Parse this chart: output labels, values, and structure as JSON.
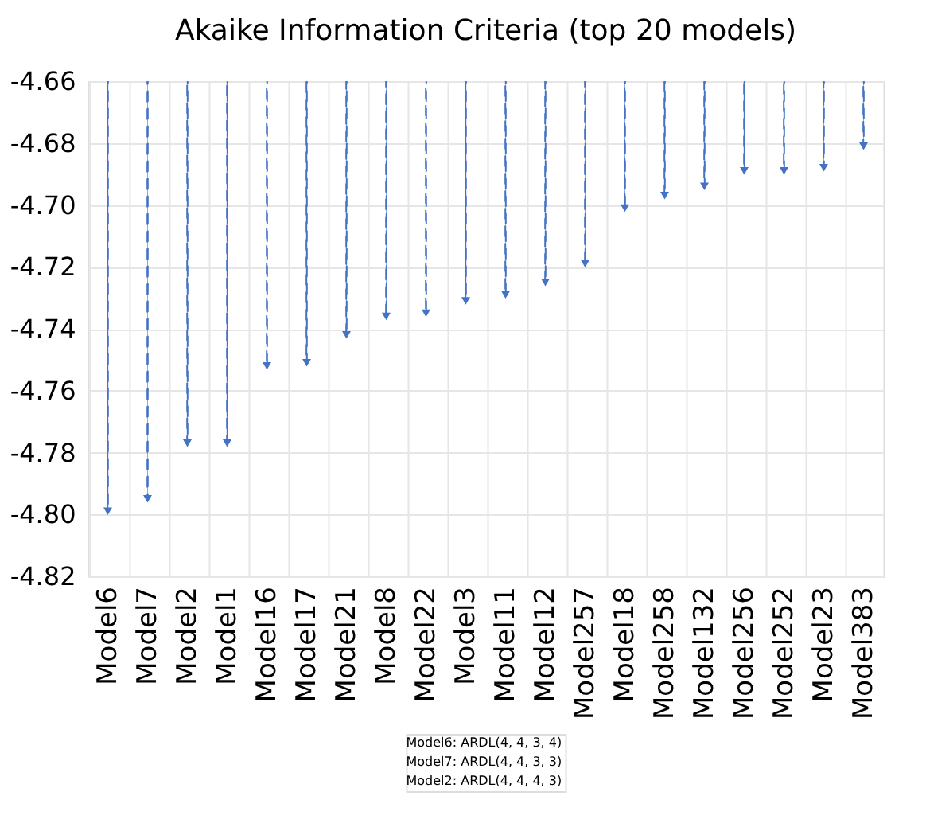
{
  "chart_data": {
    "type": "bar",
    "title": "Akaike Information Criteria (top 20 models)",
    "categories": [
      "Model6",
      "Model7",
      "Model2",
      "Model1",
      "Model16",
      "Model17",
      "Model21",
      "Model8",
      "Model22",
      "Model3",
      "Model11",
      "Model12",
      "Model257",
      "Model18",
      "Model258",
      "Model132",
      "Model256",
      "Model252",
      "Model23",
      "Model383"
    ],
    "series": [
      {
        "color": "#4472c4",
        "line_style": "dashed",
        "values": [
          -4.799,
          -4.795,
          -4.777,
          -4.777,
          -4.752,
          -4.751,
          -4.742,
          -4.736,
          -4.735,
          -4.731,
          -4.729,
          -4.725,
          -4.719,
          -4.701,
          -4.697,
          -4.694,
          -4.689,
          -4.689,
          -4.688,
          -4.681
        ]
      },
      {
        "type": "scatter",
        "color": "#4472c4",
        "marker": "triangle",
        "values": [
          -4.799,
          -4.795,
          -4.777,
          -4.777,
          -4.752,
          -4.751,
          -4.742,
          -4.736,
          -4.735,
          -4.731,
          -4.729,
          -4.725,
          -4.719,
          -4.701,
          -4.697,
          -4.694,
          -4.689,
          -4.689,
          -4.688,
          -4.681
        ]
      }
    ],
    "ylim": [
      -4.82,
      -4.66
    ],
    "yticks": [
      {
        "value": -4.82,
        "label": "-4.82"
      },
      {
        "value": -4.8,
        "label": "-4.80"
      },
      {
        "value": -4.78,
        "label": "-4.78"
      },
      {
        "value": -4.76,
        "label": "-4.76"
      },
      {
        "value": -4.74,
        "label": "-4.74"
      },
      {
        "value": -4.72,
        "label": "-4.72"
      },
      {
        "value": -4.7,
        "label": "-4.70"
      },
      {
        "value": -4.68,
        "label": "-4.68"
      },
      {
        "value": -4.66,
        "label": "-4.66"
      }
    ],
    "grid": true,
    "annotations": [
      "Model6: ARDL(4, 4, 3, 4)",
      "Model7: ARDL(4, 4, 3, 3)",
      "Model2: ARDL(4, 4, 4, 3)"
    ]
  }
}
